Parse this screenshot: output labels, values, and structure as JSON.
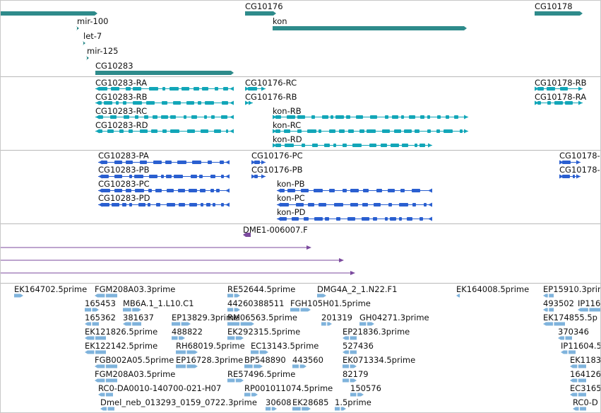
{
  "colors": {
    "gene": "#2e8b8b",
    "transcript": "#12a6b8",
    "protein": "#2a5fd0",
    "alignment": "#7b4a9e",
    "est": "#7fb3dc",
    "separator": "#b9b9b9"
  },
  "tracks": {
    "genes": [
      {
        "label": "",
        "start": -5,
        "end": 138,
        "dir": "+",
        "row": 0
      },
      {
        "label": "CG10176",
        "start": 347,
        "end": 391,
        "dir": "+",
        "row": 0
      },
      {
        "label": "CG10178",
        "start": 757,
        "end": 825,
        "dir": "+",
        "row": 0
      },
      {
        "label": "mir-100",
        "start": 109,
        "end": 112,
        "dir": "+",
        "row": 1
      },
      {
        "label": "kon",
        "start": 386,
        "end": 661,
        "dir": "+",
        "row": 1
      },
      {
        "label": "let-7",
        "start": 118,
        "end": 121,
        "dir": "+",
        "row": 2
      },
      {
        "label": "mir-125",
        "start": 123,
        "end": 126,
        "dir": "+",
        "row": 3
      },
      {
        "label": "CG10283",
        "start": 135,
        "end": 331,
        "dir": "+",
        "row": 4
      }
    ],
    "transcripts": [
      {
        "label": "CG10283-RA",
        "start": 135,
        "end": 331,
        "dir": "-",
        "row": 0
      },
      {
        "label": "CG10176-RC",
        "start": 347,
        "end": 376,
        "dir": "+",
        "row": 0
      },
      {
        "label": "CG10178-RB",
        "start": 757,
        "end": 825,
        "dir": "+",
        "row": 0
      },
      {
        "label": "CG10283-RB",
        "start": 135,
        "end": 331,
        "dir": "-",
        "row": 1
      },
      {
        "label": "CG10176-RB",
        "start": 347,
        "end": 358,
        "dir": "+",
        "row": 1
      },
      {
        "label": "CG10178-RA",
        "start": 757,
        "end": 825,
        "dir": "+",
        "row": 1
      },
      {
        "label": "CG10283-RC",
        "start": 135,
        "end": 331,
        "dir": "-",
        "row": 2
      },
      {
        "label": "kon-RB",
        "start": 386,
        "end": 663,
        "dir": "+",
        "row": 2
      },
      {
        "label": "CG10283-RD",
        "start": 135,
        "end": 331,
        "dir": "-",
        "row": 3
      },
      {
        "label": "kon-RC",
        "start": 386,
        "end": 663,
        "dir": "+",
        "row": 3
      },
      {
        "label": "kon-RD",
        "start": 386,
        "end": 612,
        "dir": "+",
        "row": 4
      }
    ],
    "proteins": [
      {
        "label": "CG10283-PA",
        "start": 139,
        "end": 325,
        "dir": "-",
        "row": 0
      },
      {
        "label": "CG10176-PC",
        "start": 356,
        "end": 376,
        "dir": "+",
        "row": 0
      },
      {
        "label": "CG10178-",
        "start": 792,
        "end": 822,
        "dir": "+",
        "row": 0
      },
      {
        "label": "CG10283-PB",
        "start": 139,
        "end": 325,
        "dir": "-",
        "row": 1
      },
      {
        "label": "CG10176-PB",
        "start": 356,
        "end": 376,
        "dir": "+",
        "row": 1
      },
      {
        "label": "CG10178-",
        "start": 792,
        "end": 822,
        "dir": "+",
        "row": 1
      },
      {
        "label": "CG10283-PC",
        "start": 139,
        "end": 325,
        "dir": "-",
        "row": 2
      },
      {
        "label": "kon-PB",
        "start": 392,
        "end": 612,
        "dir": "-",
        "row": 2
      },
      {
        "label": "CG10283-PD",
        "start": 139,
        "end": 325,
        "dir": "-",
        "row": 3
      },
      {
        "label": "kon-PC",
        "start": 392,
        "end": 612,
        "dir": "-",
        "row": 3
      },
      {
        "label": "kon-PD",
        "start": 392,
        "end": 612,
        "dir": "-",
        "row": 4
      }
    ],
    "alignments": [
      {
        "label": "DME1-006007.F",
        "start": 344,
        "end": 355,
        "dir": "-",
        "row": 0
      },
      {
        "label": "",
        "start": -5,
        "end": 441,
        "dir": "+",
        "row": 1
      },
      {
        "label": "",
        "start": -5,
        "end": 487,
        "dir": "+",
        "row": 2
      },
      {
        "label": "",
        "start": -5,
        "end": 503,
        "dir": "+",
        "row": 3
      }
    ],
    "ests": [
      {
        "label": "EK164702.5prime",
        "start": 20,
        "end": 33,
        "dir": "+",
        "row": 0
      },
      {
        "label": "FGM208A03.3prime",
        "start": 134,
        "end": 166,
        "dir": "-",
        "row": 0
      },
      {
        "label": "RE52644.5prime",
        "start": 322,
        "end": 340,
        "dir": "+",
        "row": 0
      },
      {
        "label": "DMG4A_2_1.N22.F1",
        "start": 449,
        "end": 462,
        "dir": "+",
        "row": 0
      },
      {
        "label": "EK164008.5prime",
        "start": 646,
        "end": 650,
        "dir": "-",
        "row": 0
      },
      {
        "label": "EP15910.3prime",
        "start": 769,
        "end": 784,
        "dir": "-",
        "row": 0
      },
      {
        "label": "165453",
        "start": 120,
        "end": 140,
        "dir": "+",
        "row": 1
      },
      {
        "label": "MB6A.1_1.L10.C1",
        "start": 174,
        "end": 200,
        "dir": "+",
        "row": 1
      },
      {
        "label": "44260388511",
        "start": 322,
        "end": 340,
        "dir": "+",
        "row": 1
      },
      {
        "label": "FGH105H01.5prime",
        "start": 411,
        "end": 440,
        "dir": "+",
        "row": 1
      },
      {
        "label": "493502",
        "start": 769,
        "end": 784,
        "dir": "-",
        "row": 1
      },
      {
        "label": "IP116",
        "start": 818,
        "end": 851,
        "dir": "-",
        "row": 1
      },
      {
        "label": "165362",
        "start": 120,
        "end": 140,
        "dir": "-",
        "row": 2
      },
      {
        "label": "381637",
        "start": 174,
        "end": 200,
        "dir": "-",
        "row": 2
      },
      {
        "label": "EP13829.3prime",
        "start": 243,
        "end": 270,
        "dir": "+",
        "row": 2
      },
      {
        "label": "RM06563.5prime",
        "start": 322,
        "end": 360,
        "dir": "+",
        "row": 2
      },
      {
        "label": "201319",
        "start": 455,
        "end": 470,
        "dir": "+",
        "row": 2
      },
      {
        "label": "GH04271.3prime",
        "start": 509,
        "end": 530,
        "dir": "+",
        "row": 2
      },
      {
        "label": "EK174855.5p",
        "start": 769,
        "end": 800,
        "dir": "-",
        "row": 2
      },
      {
        "label": "EK121826.5prime",
        "start": 120,
        "end": 150,
        "dir": "-",
        "row": 3
      },
      {
        "label": "488822",
        "start": 243,
        "end": 262,
        "dir": "+",
        "row": 3
      },
      {
        "label": "EK292315.5prime",
        "start": 322,
        "end": 345,
        "dir": "+",
        "row": 3
      },
      {
        "label": "EP21836.3prime",
        "start": 485,
        "end": 505,
        "dir": "-",
        "row": 3
      },
      {
        "label": "370346",
        "start": 790,
        "end": 810,
        "dir": "-",
        "row": 3
      },
      {
        "label": "EK122142.5prime",
        "start": 120,
        "end": 150,
        "dir": "-",
        "row": 4
      },
      {
        "label": "RH68019.5prime",
        "start": 249,
        "end": 280,
        "dir": "+",
        "row": 4
      },
      {
        "label": "EC13143.5prime",
        "start": 355,
        "end": 380,
        "dir": "+",
        "row": 4
      },
      {
        "label": "527436",
        "start": 485,
        "end": 505,
        "dir": "-",
        "row": 4
      },
      {
        "label": "IP11604.5prime",
        "start": 794,
        "end": 815,
        "dir": "-",
        "row": 4
      },
      {
        "label": "FGB002A05.5prime",
        "start": 134,
        "end": 166,
        "dir": "-",
        "row": 5
      },
      {
        "label": "EP16728.3prime",
        "start": 249,
        "end": 280,
        "dir": "+",
        "row": 5
      },
      {
        "label": "BP548890",
        "start": 346,
        "end": 372,
        "dir": "+",
        "row": 5
      },
      {
        "label": "443560",
        "start": 414,
        "end": 434,
        "dir": "+",
        "row": 5
      },
      {
        "label": "EK071334.5prime",
        "start": 485,
        "end": 505,
        "dir": "+",
        "row": 5
      },
      {
        "label": "EK1183",
        "start": 807,
        "end": 830,
        "dir": "-",
        "row": 5
      },
      {
        "label": "FGM208A03.5prime",
        "start": 134,
        "end": 166,
        "dir": "-",
        "row": 6
      },
      {
        "label": "RE57496.5prime",
        "start": 322,
        "end": 345,
        "dir": "+",
        "row": 6
      },
      {
        "label": "82179",
        "start": 485,
        "end": 505,
        "dir": "+",
        "row": 6
      },
      {
        "label": "164126",
        "start": 807,
        "end": 830,
        "dir": "-",
        "row": 6
      },
      {
        "label": "RC0-DA0010-140700-021-H07",
        "start": 139,
        "end": 160,
        "dir": "-",
        "row": 7
      },
      {
        "label": "RP001011074.5prime",
        "start": 346,
        "end": 365,
        "dir": "+",
        "row": 7
      },
      {
        "label": "150576",
        "start": 496,
        "end": 515,
        "dir": "+",
        "row": 7
      },
      {
        "label": "EC3165",
        "start": 807,
        "end": 830,
        "dir": "-",
        "row": 7
      },
      {
        "label": "Dmel_neb_013293_0159_0722.3prime",
        "start": 142,
        "end": 162,
        "dir": "-",
        "row": 8
      },
      {
        "label": "30608",
        "start": 376,
        "end": 392,
        "dir": "+",
        "row": 8
      },
      {
        "label": "EK28685",
        "start": 414,
        "end": 440,
        "dir": "+",
        "row": 8
      },
      {
        "label": "1.5prime",
        "start": 474,
        "end": 490,
        "dir": "+",
        "row": 8
      },
      {
        "label": "RC0-D",
        "start": 811,
        "end": 830,
        "dir": "-",
        "row": 8
      }
    ]
  }
}
